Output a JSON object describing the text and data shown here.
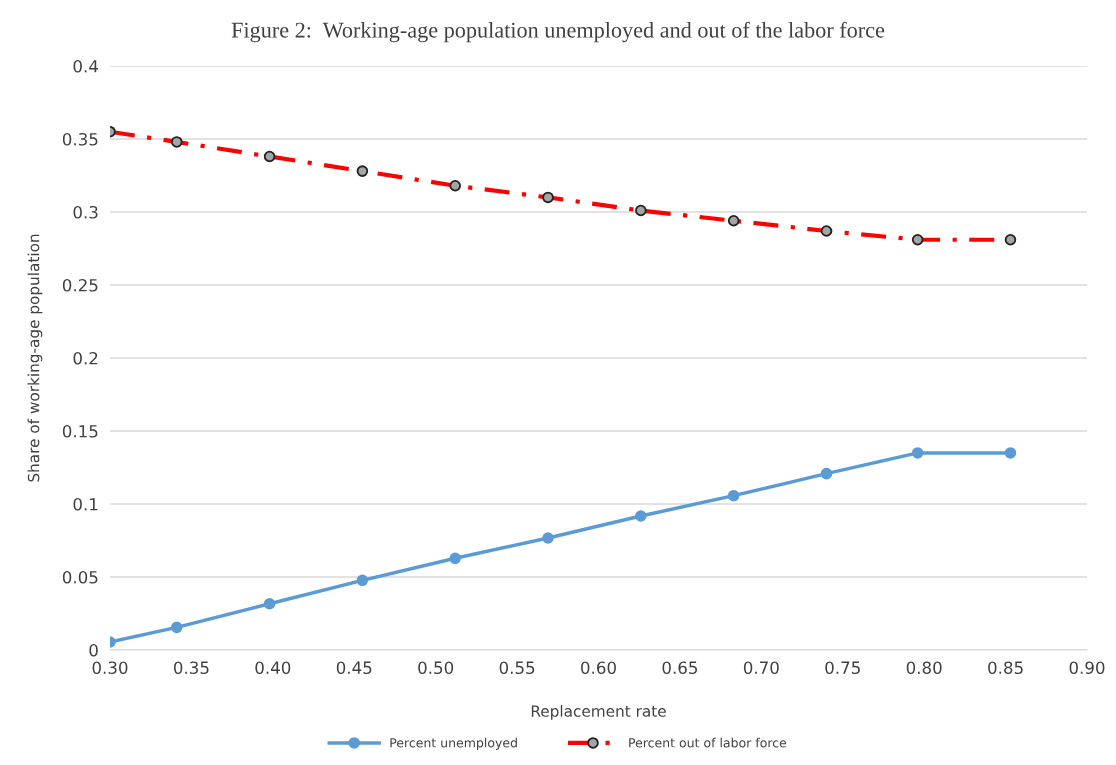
{
  "chart_data": {
    "type": "line",
    "title": "Figure 2:  Working-age population unemployed and out of the labor force",
    "xlabel": "Replacement rate",
    "ylabel": "Share of working-age population",
    "x": [
      0.3,
      0.341,
      0.398,
      0.455,
      0.512,
      0.569,
      0.626,
      0.683,
      0.74,
      0.796,
      0.853
    ],
    "series": [
      {
        "name": "Percent unemployed",
        "color": "#5b9bd5",
        "marker": "circle",
        "line_style": "solid",
        "values": [
          0.0055,
          0.0155,
          0.0317,
          0.0477,
          0.0628,
          0.0767,
          0.0918,
          0.1057,
          0.1208,
          0.135,
          0.135
        ]
      },
      {
        "name": "Percent out of labor force",
        "color": "#ff0000",
        "marker": "circle",
        "line_style": "dashdot",
        "values": [
          0.355,
          0.348,
          0.338,
          0.328,
          0.318,
          0.31,
          0.301,
          0.294,
          0.287,
          0.281,
          0.281
        ]
      }
    ],
    "xlim": [
      0.3,
      0.9
    ],
    "xticks": [
      {
        "value": 0.3,
        "label": "0.30"
      },
      {
        "value": 0.35,
        "label": "0.35"
      },
      {
        "value": 0.4,
        "label": "0.40"
      },
      {
        "value": 0.45,
        "label": "0.45"
      },
      {
        "value": 0.5,
        "label": "0.50"
      },
      {
        "value": 0.55,
        "label": "0.55"
      },
      {
        "value": 0.6,
        "label": "0.60"
      },
      {
        "value": 0.65,
        "label": "0.65"
      },
      {
        "value": 0.7,
        "label": "0.70"
      },
      {
        "value": 0.75,
        "label": "0.75"
      },
      {
        "value": 0.8,
        "label": "0.80"
      },
      {
        "value": 0.85,
        "label": "0.85"
      },
      {
        "value": 0.9,
        "label": "0.90"
      }
    ],
    "ylim": [
      0,
      0.4
    ],
    "yticks": [
      0,
      0.05,
      0.1,
      0.15,
      0.2,
      0.25,
      0.3,
      0.35,
      0.4
    ],
    "grid": "y",
    "legend": "bottom"
  }
}
